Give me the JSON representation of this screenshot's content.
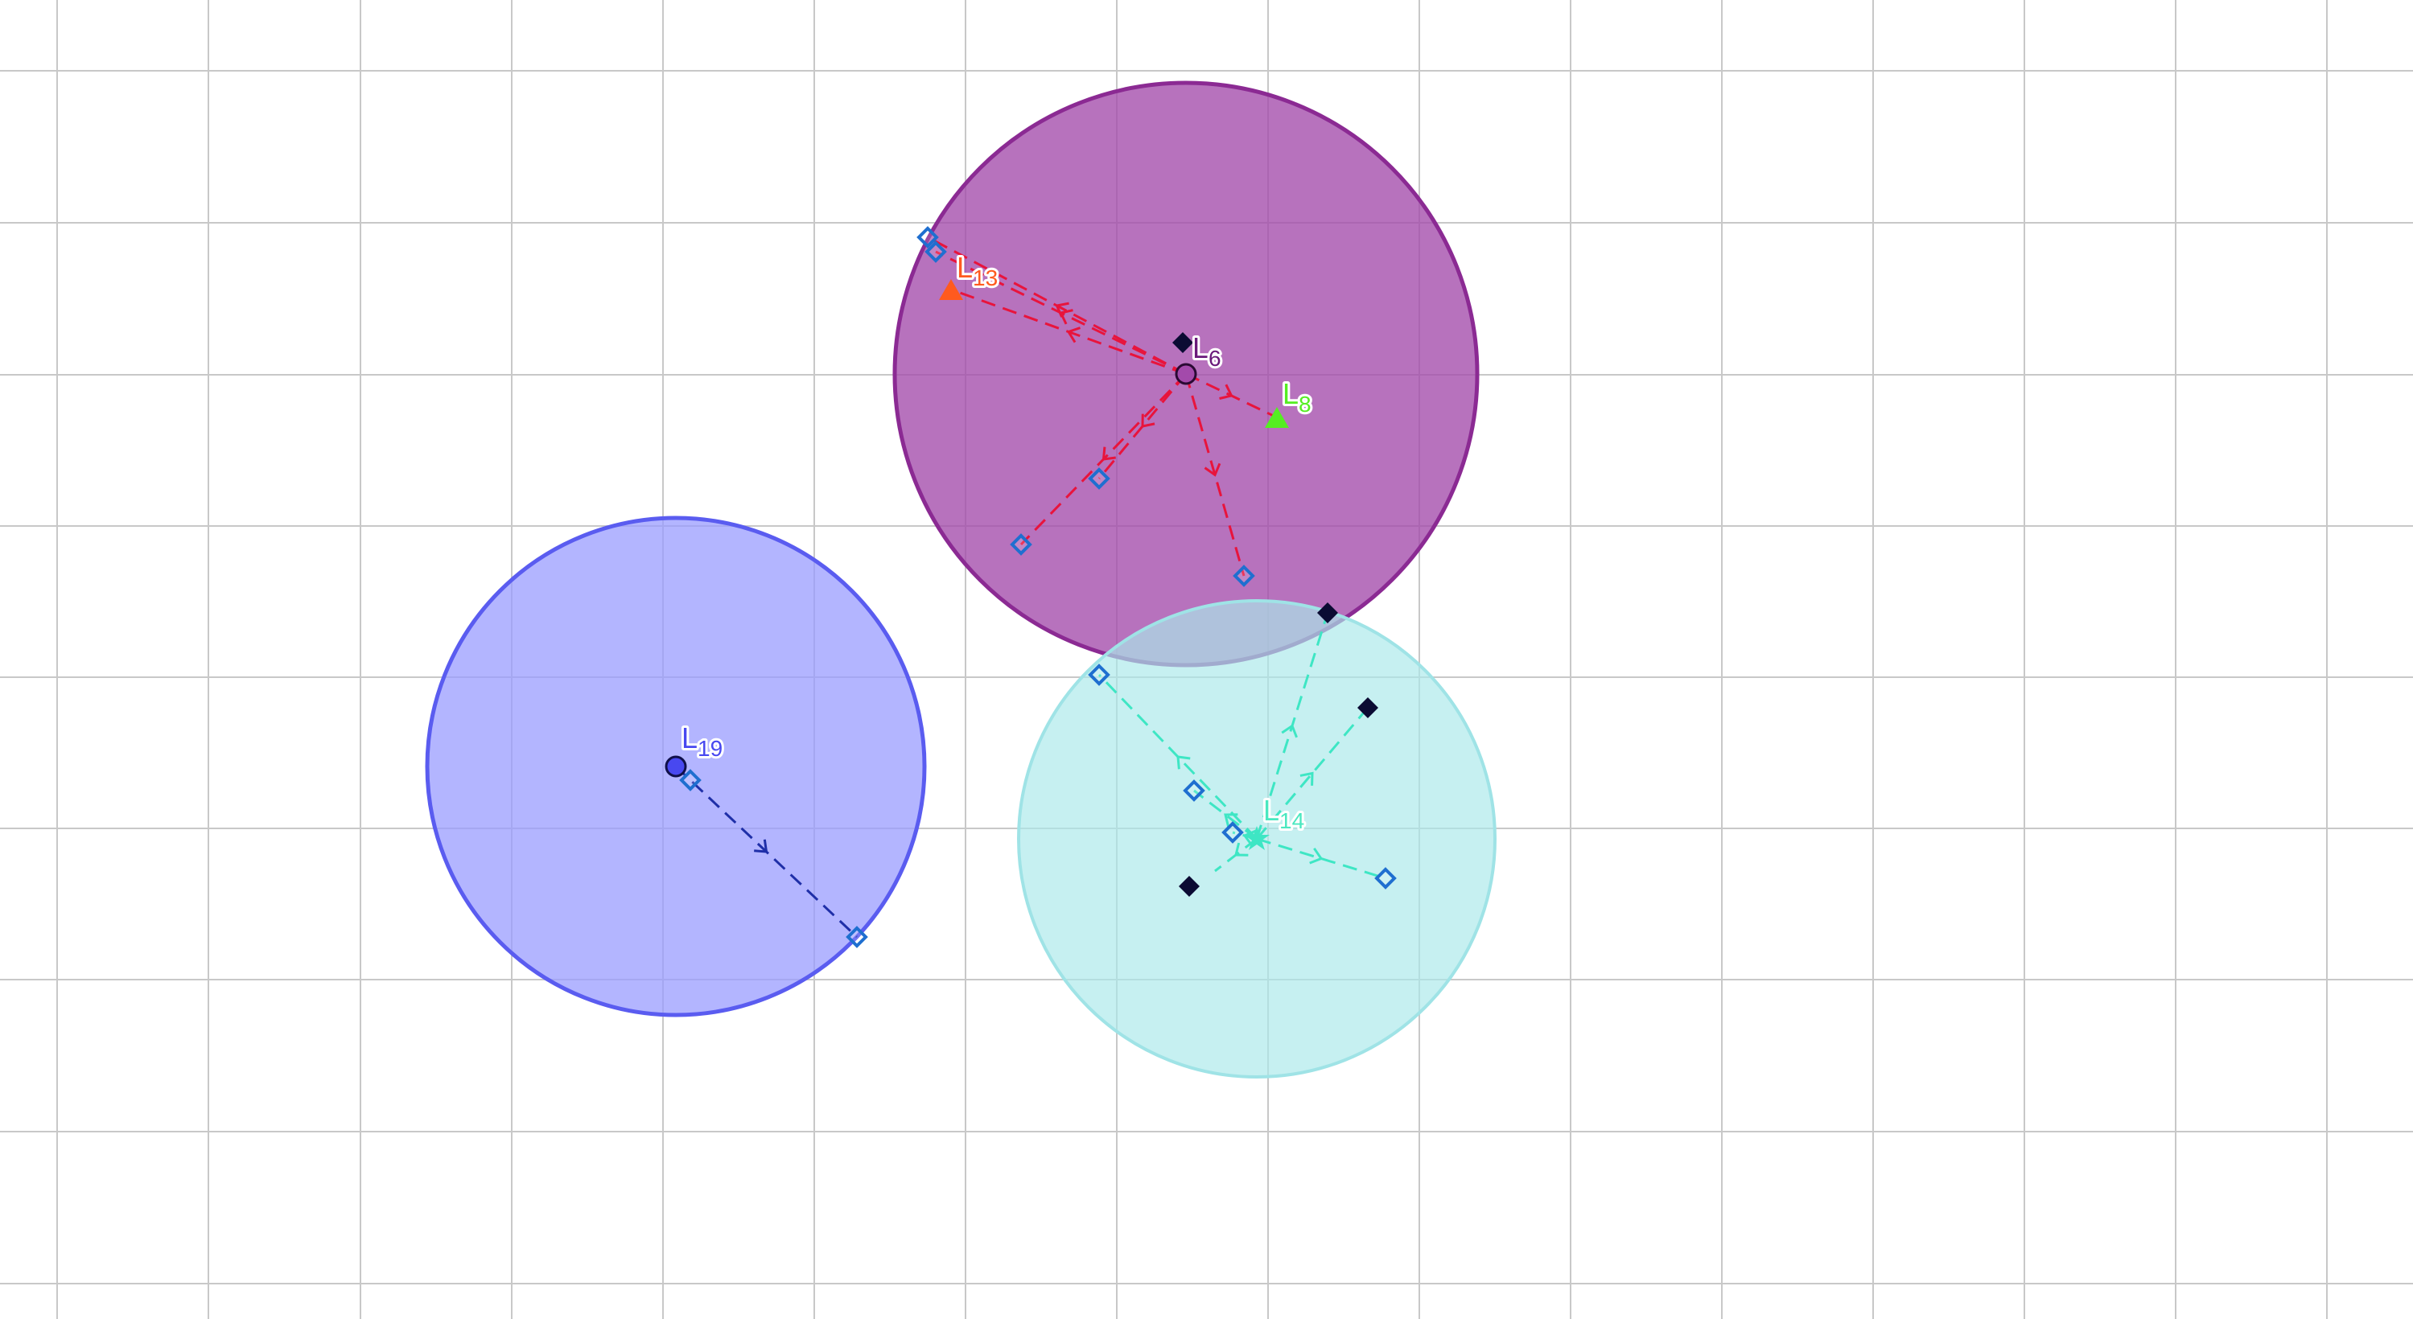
{
  "diagram": {
    "colors": {
      "grid": "#c8c8c8",
      "purple_fill": "#a34aab",
      "purple_stroke": "#8b2a93",
      "blue_fill": "#9a9cff",
      "blue_stroke": "#5a5cf0",
      "cyan_fill": "#abe9ea",
      "cyan_stroke": "#9fe3e6",
      "red_edge": "#e8143c",
      "blue_edge": "#1f2fa8",
      "cyan_edge": "#3ee6c4",
      "hollow_marker": "#1f6fd0",
      "solid_marker": "#0b0b33",
      "label_orange": "#ff5a1f",
      "label_green": "#55ee22",
      "label_purple": "#6a1a7a",
      "label_blue": "#4848f0",
      "label_cyan": "#4ae8c0"
    },
    "regions": [
      {
        "id": "purple",
        "label": "L",
        "label_sub": "6"
      },
      {
        "id": "blue",
        "label": "L",
        "label_sub": "19"
      },
      {
        "id": "cyan",
        "label": "L",
        "label_sub": "14"
      }
    ],
    "nodes": [
      {
        "id": "L13",
        "label": "L",
        "label_sub": "13",
        "icon": "triangle-icon"
      },
      {
        "id": "L8",
        "label": "L",
        "label_sub": "8",
        "icon": "triangle-icon"
      },
      {
        "id": "L6",
        "label": "L",
        "label_sub": "6",
        "icon": "circle-icon"
      },
      {
        "id": "L19",
        "label": "L",
        "label_sub": "19",
        "icon": "circle-icon"
      },
      {
        "id": "L14",
        "label": "L",
        "label_sub": "14",
        "icon": "star-icon"
      }
    ]
  }
}
